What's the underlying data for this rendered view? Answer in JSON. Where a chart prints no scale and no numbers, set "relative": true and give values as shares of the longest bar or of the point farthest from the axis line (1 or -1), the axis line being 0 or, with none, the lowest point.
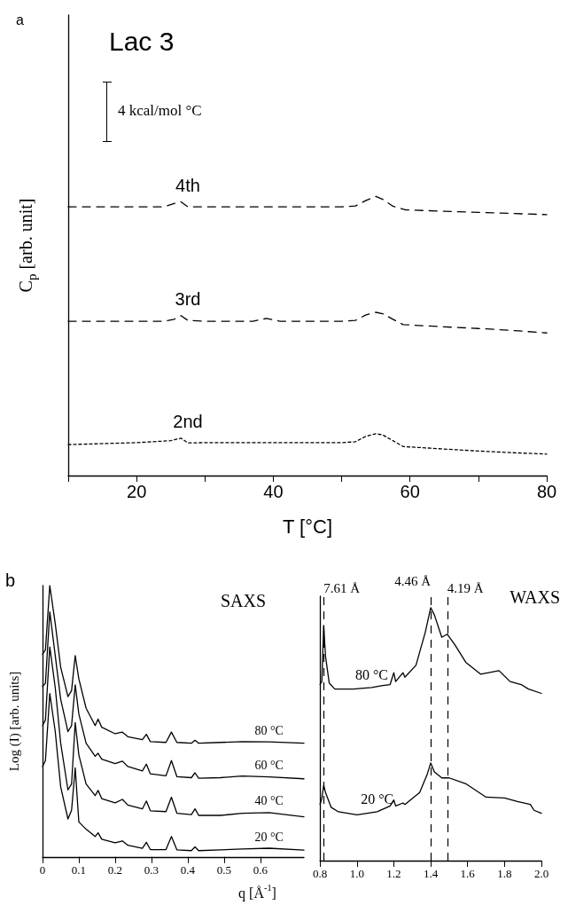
{
  "chart_data": [
    {
      "type": "line",
      "title": "Lac 3",
      "xlabel": "T [°C]",
      "ylabel": "C$_{p}$ [arb. unit]",
      "relative": true,
      "xlim": [
        10,
        80
      ],
      "xticks": [
        {
          "value": 10,
          "label": null
        },
        20,
        {
          "value": 30,
          "label": null
        },
        40,
        {
          "value": 50,
          "label": null
        },
        60,
        {
          "value": 70,
          "label": null
        },
        80
      ],
      "grid": false,
      "marker": "none",
      "annotations": [
        "a",
        "4 kcal/mol °C"
      ],
      "series": [
        {
          "name": "4th",
          "color": "#000000",
          "line_style": "dashed",
          "x": [
            10,
            24,
            25.5,
            26.5,
            27.5,
            30,
            40,
            50,
            52,
            53.5,
            55,
            56,
            57.5,
            59.4,
            65,
            70,
            75,
            80
          ],
          "values": [
            0.963,
            0.963,
            0.975,
            0.981,
            0.963,
            0.963,
            0.963,
            0.963,
            0.966,
            0.985,
            1.0,
            0.99,
            0.965,
            0.952,
            0.947,
            0.943,
            0.939,
            0.935
          ]
        },
        {
          "name": "3rd",
          "color": "#000000",
          "line_style": "dashed",
          "x": [
            10,
            24,
            25.5,
            26.5,
            27.5,
            30,
            37,
            39,
            41,
            50,
            52,
            53.5,
            55,
            56,
            57.5,
            59,
            65,
            70,
            75,
            80
          ],
          "values": [
            0.553,
            0.553,
            0.56,
            0.573,
            0.556,
            0.553,
            0.553,
            0.563,
            0.553,
            0.553,
            0.556,
            0.575,
            0.585,
            0.58,
            0.56,
            0.541,
            0.533,
            0.527,
            0.52,
            0.511
          ]
        },
        {
          "name": "2nd",
          "color": "#000000",
          "line_style": "dotted",
          "x": [
            10,
            20,
            25,
            26.5,
            27.5,
            30,
            40,
            50,
            52,
            53.5,
            55,
            56,
            57.5,
            59,
            65,
            70,
            75,
            80
          ],
          "values": [
            0.111,
            0.118,
            0.125,
            0.134,
            0.117,
            0.118,
            0.118,
            0.118,
            0.121,
            0.14,
            0.15,
            0.146,
            0.125,
            0.104,
            0.095,
            0.088,
            0.082,
            0.077
          ]
        }
      ]
    },
    {
      "type": "line",
      "title": "SAXS",
      "xlabel": "q [Å$^{-1}$]",
      "ylabel": "Log (I) [arb. units]",
      "relative": true,
      "xlim": [
        0,
        0.72
      ],
      "xticks": [
        0,
        0.1,
        0.2,
        0.3,
        0.4,
        0.5,
        0.6
      ],
      "grid": false,
      "marker": "none",
      "line_style": "solid",
      "annotations": [
        "b"
      ],
      "x": [
        0,
        0.008,
        0.02,
        0.035,
        0.05,
        0.07,
        0.08,
        0.09,
        0.1,
        0.12,
        0.145,
        0.153,
        0.163,
        0.2,
        0.22,
        0.235,
        0.275,
        0.286,
        0.297,
        0.34,
        0.355,
        0.37,
        0.41,
        0.42,
        0.43,
        0.49,
        0.55,
        0.624,
        0.72
      ],
      "series": [
        {
          "name": "80 °C",
          "color": "#000000",
          "values": [
            0.747,
            0.763,
            1.0,
            0.86,
            0.699,
            0.591,
            0.613,
            0.742,
            0.656,
            0.548,
            0.484,
            0.508,
            0.478,
            0.454,
            0.46,
            0.443,
            0.432,
            0.452,
            0.425,
            0.422,
            0.46,
            0.422,
            0.419,
            0.43,
            0.419,
            0.422,
            0.425,
            0.424,
            0.419
          ]
        },
        {
          "name": "60 °C",
          "color": "#000000",
          "values": [
            0.629,
            0.64,
            0.903,
            0.742,
            0.581,
            0.462,
            0.484,
            0.634,
            0.527,
            0.419,
            0.371,
            0.382,
            0.36,
            0.344,
            0.353,
            0.333,
            0.317,
            0.342,
            0.306,
            0.299,
            0.355,
            0.296,
            0.292,
            0.31,
            0.29,
            0.292,
            0.298,
            0.295,
            0.288
          ]
        },
        {
          "name": "40 °C",
          "color": "#000000",
          "values": [
            0.484,
            0.505,
            0.774,
            0.624,
            0.419,
            0.247,
            0.269,
            0.495,
            0.376,
            0.269,
            0.226,
            0.245,
            0.215,
            0.199,
            0.212,
            0.191,
            0.177,
            0.206,
            0.17,
            0.167,
            0.22,
            0.161,
            0.156,
            0.177,
            0.153,
            0.153,
            0.161,
            0.163,
            0.148
          ]
        },
        {
          "name": "20 °C",
          "color": "#000000",
          "values": [
            0.333,
            0.355,
            0.602,
            0.462,
            0.258,
            0.14,
            0.172,
            0.328,
            0.129,
            0.102,
            0.075,
            0.089,
            0.065,
            0.052,
            0.059,
            0.043,
            0.032,
            0.054,
            0.027,
            0.027,
            0.075,
            0.026,
            0.023,
            0.037,
            0.023,
            0.026,
            0.029,
            0.032,
            0.025
          ]
        }
      ]
    },
    {
      "type": "line",
      "title": "WAXS",
      "relative": true,
      "xlim": [
        0.8,
        2.0
      ],
      "xticks": [
        {
          "value": 0.8,
          "label": "0.8"
        },
        {
          "value": 1.0,
          "label": "1.0"
        },
        {
          "value": 1.2,
          "label": "1.2"
        },
        {
          "value": 1.4,
          "label": "1.4"
        },
        {
          "value": 1.6,
          "label": "1.6"
        },
        {
          "value": 1.8,
          "label": "1.8"
        },
        {
          "value": 2.0,
          "label": "2.0"
        }
      ],
      "grid": false,
      "marker": "none",
      "line_style": "solid",
      "ref_lines": [
        {
          "axis": "x",
          "value": 0.82,
          "label": "7.61 Å",
          "color": "#000000",
          "line_style": "dashed"
        },
        {
          "axis": "x",
          "value": 1.4,
          "label": "4.46 Å",
          "color": "#000000",
          "line_style": "dashed"
        },
        {
          "axis": "x",
          "value": 1.49,
          "label": "4.19 Å",
          "color": "#000000",
          "line_style": "dashed"
        }
      ],
      "series": [
        {
          "name": "80 °C",
          "color": "#000000",
          "x": [
            0.8,
            0.81,
            0.82,
            0.83,
            0.85,
            0.88,
            0.98,
            1.08,
            1.14,
            1.18,
            1.2,
            1.21,
            1.25,
            1.26,
            1.32,
            1.37,
            1.4,
            1.42,
            1.46,
            1.49,
            1.53,
            1.59,
            1.67,
            1.77,
            1.83,
            1.89,
            1.93,
            2.0
          ],
          "values": [
            0.696,
            0.708,
            0.93,
            0.807,
            0.702,
            0.678,
            0.678,
            0.684,
            0.692,
            0.696,
            0.743,
            0.708,
            0.743,
            0.725,
            0.772,
            0.901,
            1.0,
            0.971,
            0.883,
            0.895,
            0.854,
            0.784,
            0.737,
            0.751,
            0.708,
            0.696,
            0.678,
            0.661
          ]
        },
        {
          "name": "20 °C",
          "color": "#000000",
          "x": [
            0.8,
            0.81,
            0.82,
            0.83,
            0.86,
            0.9,
            1.0,
            1.11,
            1.18,
            1.2,
            1.21,
            1.25,
            1.26,
            1.34,
            1.38,
            1.4,
            1.42,
            1.46,
            1.5,
            1.59,
            1.7,
            1.8,
            1.87,
            1.94,
            1.96,
            2.0
          ],
          "values": [
            0.222,
            0.246,
            0.298,
            0.269,
            0.211,
            0.193,
            0.181,
            0.193,
            0.216,
            0.24,
            0.216,
            0.228,
            0.222,
            0.269,
            0.339,
            0.386,
            0.351,
            0.327,
            0.327,
            0.304,
            0.251,
            0.248,
            0.234,
            0.222,
            0.199,
            0.187
          ]
        }
      ]
    }
  ]
}
